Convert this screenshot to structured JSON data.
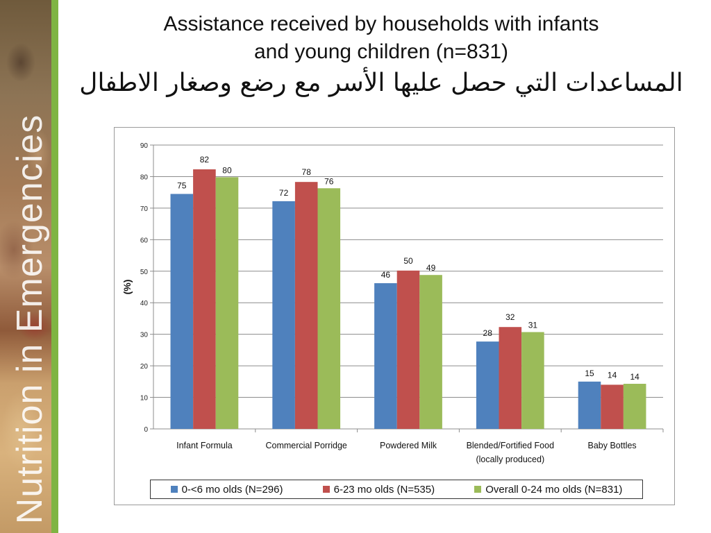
{
  "slide": {
    "title_en_line1": "Assistance received by households with infants",
    "title_en_line2": "and young children (n=831)",
    "title_ar": "المساعدات التي حصل عليها الأسر مع رضع وصغار الاطفال",
    "sidebar_text": "Nutrition in Emergencies"
  },
  "colors": {
    "series_0": "#4f81bd",
    "series_1": "#c0504d",
    "series_2": "#9bbb59",
    "sidebar_accent": "#7fb443"
  },
  "chart_data": {
    "type": "bar",
    "title": "",
    "xlabel": "",
    "ylabel": "(%)",
    "ylim": [
      0,
      90
    ],
    "yticks": [
      0,
      10,
      20,
      30,
      40,
      50,
      60,
      70,
      80,
      90
    ],
    "grid": true,
    "legend_position": "bottom",
    "categories": [
      [
        "Infant Formula"
      ],
      [
        "Commercial Porridge"
      ],
      [
        "Powdered Milk"
      ],
      [
        "Blended/Fortified Food",
        "(locally produced)"
      ],
      [
        "Baby Bottles"
      ]
    ],
    "series": [
      {
        "name": "0-<6 mo olds (N=296)",
        "values": [
          74.5,
          72.2,
          46.2,
          27.7,
          15.0
        ],
        "labels": [
          "75",
          "72",
          "46",
          "28",
          "15"
        ]
      },
      {
        "name": "6-23 mo olds (N=535)",
        "values": [
          82.3,
          78.3,
          50.2,
          32.3,
          14.0
        ],
        "labels": [
          "82",
          "78",
          "50",
          "32",
          "14"
        ]
      },
      {
        "name": "Overall 0-24 mo olds (N=831)",
        "values": [
          79.8,
          76.3,
          48.8,
          30.7,
          14.3
        ],
        "labels": [
          "80",
          "76",
          "49",
          "31",
          "14"
        ]
      }
    ]
  }
}
